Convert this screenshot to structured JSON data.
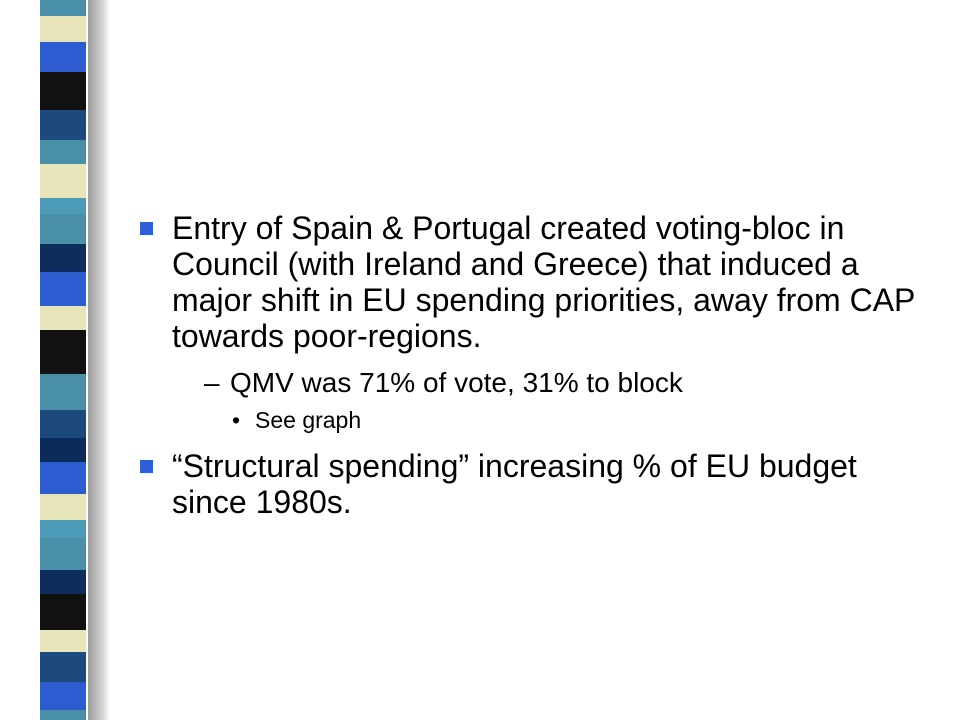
{
  "colors": {
    "bullet": "#2f5fd8",
    "stripe": [
      "#4a8fa8",
      "#1c4a7e",
      "#0f2d5c",
      "#2c5cd0",
      "#111111",
      "#e6e4b8",
      "#4a9ab8",
      "#0a2a5a"
    ]
  },
  "slide": {
    "bullets": [
      {
        "text": "Entry of Spain & Portugal created voting-bloc in Council (with Ireland and Greece) that induced a major shift in EU spending priorities, away from CAP towards poor-regions.",
        "bullet_glyph": "n",
        "sub": {
          "dash": "–",
          "text": "QMV was 71% of vote, 31% to block",
          "sub": {
            "dot": "•",
            "text": "See graph"
          }
        }
      },
      {
        "text": "“Structural spending” increasing % of EU budget since 1980s.",
        "bullet_glyph": "n"
      }
    ]
  }
}
